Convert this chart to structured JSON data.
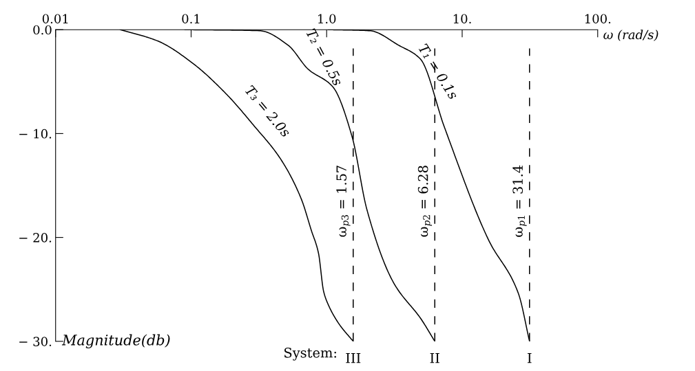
{
  "chart_data": {
    "type": "line",
    "xlabel": "ω (rad/s)",
    "ylabel": "Magnitude(db)",
    "log": "x",
    "xlim": [
      0.01,
      100
    ],
    "xticks": [
      0.01,
      0.1,
      {
        "value": 1,
        "label": "1.0"
      },
      {
        "value": 10,
        "label": "10."
      },
      {
        "value": 100,
        "label": "100."
      }
    ],
    "ylim": [
      -30,
      0
    ],
    "yticks": [
      {
        "value": 0,
        "label": "0.0"
      },
      {
        "value": -10,
        "label": "− 10."
      },
      {
        "value": -20,
        "label": "− 20."
      },
      {
        "value": -30,
        "label": "− 30."
      }
    ],
    "grid": false,
    "marker": "none",
    "line_style": "solid",
    "series": [
      {
        "color": "#000000",
        "x": [
          0.03,
          0.057,
          0.102,
          0.182,
          0.289,
          0.46,
          0.65,
          0.77,
          0.87,
          0.95,
          1.03,
          1.23,
          1.57
        ],
        "values": [
          0,
          -1.1,
          -3.2,
          -6.2,
          -9.2,
          -12.5,
          -16.3,
          -19.3,
          -21.5,
          -25.2,
          -26.5,
          -28.3,
          -30
        ]
      },
      {
        "color": "#000000",
        "x": [
          0.09,
          0.32,
          0.52,
          0.73,
          1.11,
          1.54,
          1.98,
          3.1,
          5.0,
          6.28
        ],
        "values": [
          0,
          -0.1,
          -1.5,
          -3.8,
          -5.5,
          -10.3,
          -17.3,
          -24.3,
          -27.9,
          -30
        ]
      },
      {
        "color": "#000000",
        "x": [
          1.03,
          2.08,
          3.4,
          4.9,
          7.4,
          15.6,
          26,
          31.4
        ],
        "values": [
          0,
          -0.1,
          -1.5,
          -2.8,
          -9.4,
          -20.2,
          -25.4,
          -30
        ]
      }
    ],
    "ref_lines": [
      {
        "axis": "x",
        "value": 1.57,
        "label": "ω$_{p3}$ = 1.57",
        "color": "#000000",
        "line_style": "dashed"
      },
      {
        "axis": "x",
        "value": 6.28,
        "label": "ω$_{p2}$ = 6.28",
        "color": "#000000",
        "line_style": "dashed"
      },
      {
        "axis": "x",
        "value": 31.4,
        "label": "ω$_{p1}$ = 31.4",
        "color": "#000000",
        "line_style": "dashed"
      }
    ],
    "annotations": [
      {
        "text": "T₃ = 2.0s",
        "x": 0.289,
        "y": -9.2
      },
      {
        "text": "T₂ = 0.5s",
        "x": 0.73,
        "y": -3.8
      },
      {
        "text": "T₁ = 0.1s",
        "x": 4.9,
        "y": -2.8
      },
      "System:",
      {
        "text": "III",
        "x": 1.57,
        "y": -30
      },
      {
        "text": "II",
        "x": 6.28,
        "y": -30
      },
      {
        "text": "I",
        "x": 31.4,
        "y": -30
      }
    ]
  }
}
